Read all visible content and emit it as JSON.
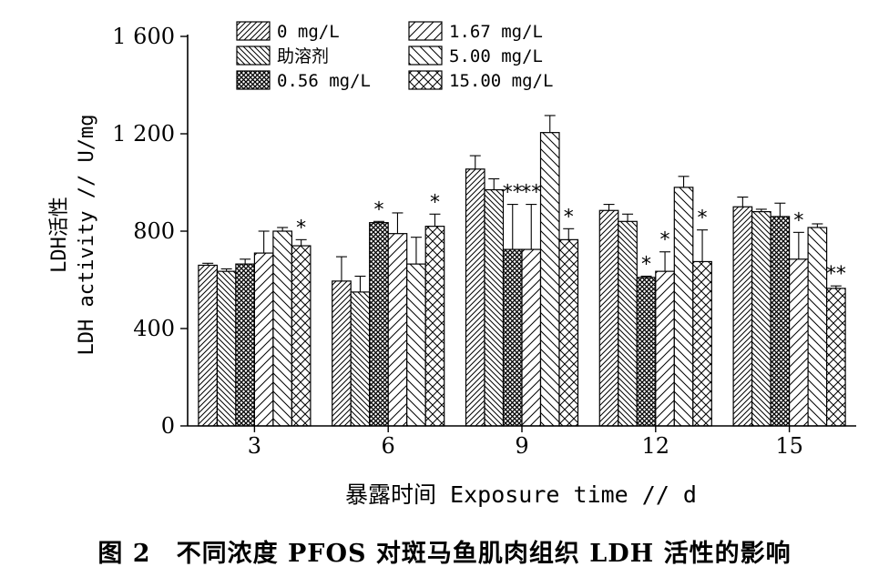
{
  "caption": "图 2　不同浓度 PFOS 对斑马鱼肌肉组织 LDH 活性的影响",
  "chart_data": {
    "type": "bar",
    "ylabel_line1": "LDH活性",
    "ylabel_line2": "LDH activity // U/mg",
    "xlabel": "暴露时间 Exposure time // d",
    "ylim": [
      0,
      1600
    ],
    "yticks": [
      0,
      400,
      800,
      1200,
      1600
    ],
    "ytick_labels": [
      "0",
      "400",
      "800",
      "1 200",
      "1 600"
    ],
    "categories": [
      "3",
      "6",
      "9",
      "12",
      "15"
    ],
    "legend_position": "top",
    "series": [
      {
        "name": "0 mg/L",
        "pattern": "diag-fwd",
        "values": [
          660,
          595,
          1055,
          885,
          900
        ],
        "errors": [
          8,
          100,
          55,
          25,
          40
        ],
        "sig": [
          "",
          "",
          "",
          "",
          ""
        ]
      },
      {
        "name": "助溶剂",
        "pattern": "diag-back",
        "values": [
          635,
          550,
          970,
          840,
          880
        ],
        "errors": [
          10,
          65,
          45,
          30,
          10
        ],
        "sig": [
          "",
          "",
          "",
          "",
          ""
        ]
      },
      {
        "name": "0.56 mg/L",
        "pattern": "crosshatch-dense",
        "values": [
          665,
          835,
          725,
          610,
          860
        ],
        "errors": [
          20,
          5,
          185,
          5,
          55
        ],
        "sig": [
          "",
          "*",
          "**",
          "*",
          ""
        ]
      },
      {
        "name": "1.67 mg/L",
        "pattern": "diag-fwd-wide",
        "values": [
          710,
          790,
          725,
          635,
          685
        ],
        "errors": [
          90,
          85,
          185,
          80,
          110
        ],
        "sig": [
          "",
          "",
          "**",
          "*",
          "*"
        ]
      },
      {
        "name": "5.00 mg/L",
        "pattern": "diag-back-wide",
        "values": [
          800,
          665,
          1205,
          980,
          815
        ],
        "errors": [
          15,
          110,
          70,
          45,
          15
        ],
        "sig": [
          "",
          "",
          "",
          "",
          ""
        ]
      },
      {
        "name": "15.00 mg/L",
        "pattern": "crosshatch-wide",
        "values": [
          740,
          820,
          765,
          675,
          565
        ],
        "errors": [
          25,
          50,
          45,
          130,
          10
        ],
        "sig": [
          "*",
          "*",
          "*",
          "*",
          "**"
        ]
      }
    ]
  }
}
